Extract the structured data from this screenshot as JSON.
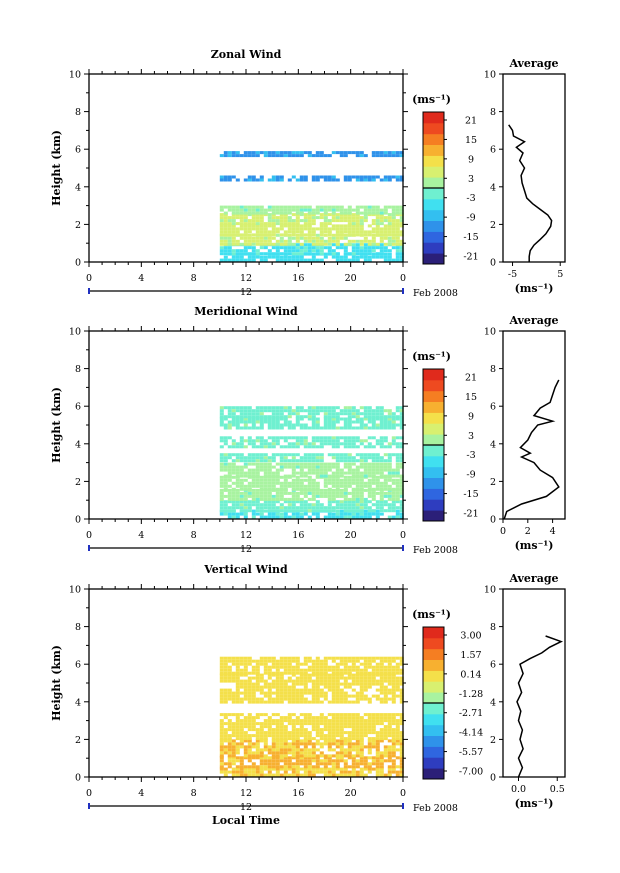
{
  "figure": {
    "xlabel": "Local Time",
    "date_label": "Feb 2008",
    "day_label": "12",
    "profile_title": "Average"
  },
  "colors": {
    "scale": [
      "#2b1f78",
      "#2e3dbf",
      "#2f66e0",
      "#2f92ea",
      "#33bff0",
      "#40e0f0",
      "#6ff0d0",
      "#a8f3a0",
      "#d8f070",
      "#f4e04a",
      "#f7b030",
      "#f57e22",
      "#ee4a20",
      "#e02a1c"
    ],
    "zero_line": "#000000"
  },
  "chart_data": [
    {
      "type": "heatmap",
      "title": "Zonal Wind",
      "ylabel": "Height (km)",
      "xlabel": "",
      "xlim": [
        0,
        24
      ],
      "ylim": [
        0,
        10
      ],
      "xticks": [
        "0",
        "4",
        "8",
        "12",
        "16",
        "20",
        "0"
      ],
      "yticks": [
        "0",
        "2",
        "4",
        "6",
        "8",
        "10"
      ],
      "colorbar": {
        "unit": "(ms⁻¹)",
        "ticks": [
          "21",
          "15",
          "9",
          "3",
          "-3",
          "-9",
          "-15",
          "-21"
        ],
        "range": [
          -24,
          24
        ]
      },
      "data_start_hour": 10,
      "layers": [
        {
          "y": [
            0.1,
            0.5
          ],
          "value": -5
        },
        {
          "y": [
            0.5,
            1.0
          ],
          "value": -4
        },
        {
          "y": [
            1.0,
            1.5
          ],
          "value": 4
        },
        {
          "y": [
            1.5,
            2.0
          ],
          "value": 5
        },
        {
          "y": [
            2.0,
            2.6
          ],
          "value": 4
        },
        {
          "y": [
            2.6,
            3.0
          ],
          "value": 1
        },
        {
          "y": [
            4.3,
            4.6
          ],
          "value": -11
        },
        {
          "y": [
            5.6,
            5.9
          ],
          "value": -11
        }
      ],
      "profile": {
        "xticks": [
          "-5",
          "5"
        ],
        "xlim": [
          -7,
          6
        ],
        "xlabel": "(ms⁻¹)",
        "points": [
          [
            -1.5,
            0.0
          ],
          [
            -1.5,
            0.3
          ],
          [
            -1.3,
            0.6
          ],
          [
            -0.5,
            0.9
          ],
          [
            0.8,
            1.2
          ],
          [
            2.0,
            1.5
          ],
          [
            3.0,
            1.9
          ],
          [
            3.2,
            2.2
          ],
          [
            2.4,
            2.5
          ],
          [
            0.8,
            2.8
          ],
          [
            -0.8,
            3.1
          ],
          [
            -2.0,
            3.4
          ],
          [
            -2.5,
            3.8
          ],
          [
            -3.0,
            4.2
          ],
          [
            -3.2,
            4.6
          ],
          [
            -2.5,
            5.0
          ],
          [
            -3.5,
            5.4
          ],
          [
            -2.8,
            5.8
          ],
          [
            -4.2,
            6.1
          ],
          [
            -2.5,
            6.4
          ],
          [
            -4.8,
            6.7
          ],
          [
            -5.0,
            7.0
          ],
          [
            -5.8,
            7.3
          ]
        ]
      }
    },
    {
      "type": "heatmap",
      "title": "Meridional Wind",
      "ylabel": "Height (km)",
      "xlabel": "",
      "xlim": [
        0,
        24
      ],
      "ylim": [
        0,
        10
      ],
      "xticks": [
        "0",
        "4",
        "8",
        "12",
        "16",
        "20",
        "0"
      ],
      "yticks": [
        "0",
        "2",
        "4",
        "6",
        "8",
        "10"
      ],
      "colorbar": {
        "unit": "(ms⁻¹)",
        "ticks": [
          "21",
          "15",
          "9",
          "3",
          "-3",
          "-9",
          "-15",
          "-21"
        ],
        "range": [
          -24,
          24
        ]
      },
      "data_start_hour": 10,
      "layers": [
        {
          "y": [
            0.1,
            0.5
          ],
          "value": -4
        },
        {
          "y": [
            0.5,
            1.0
          ],
          "value": -1
        },
        {
          "y": [
            1.0,
            1.6
          ],
          "value": 1
        },
        {
          "y": [
            1.6,
            2.3
          ],
          "value": 2
        },
        {
          "y": [
            2.3,
            3.0
          ],
          "value": 1
        },
        {
          "y": [
            3.1,
            3.5
          ],
          "value": -1
        },
        {
          "y": [
            3.8,
            4.4
          ],
          "value": -1
        },
        {
          "y": [
            4.8,
            5.4
          ],
          "value": -1
        },
        {
          "y": [
            5.5,
            6.0
          ],
          "value": -1
        }
      ],
      "profile": {
        "xticks": [
          "0",
          "2",
          "4"
        ],
        "xlim": [
          0,
          5
        ],
        "xlabel": "(ms⁻¹)",
        "points": [
          [
            0.1,
            0.0
          ],
          [
            0.3,
            0.4
          ],
          [
            1.5,
            0.8
          ],
          [
            3.5,
            1.2
          ],
          [
            4.5,
            1.7
          ],
          [
            4.0,
            2.2
          ],
          [
            3.0,
            2.6
          ],
          [
            2.5,
            3.0
          ],
          [
            1.5,
            3.3
          ],
          [
            2.2,
            3.5
          ],
          [
            1.4,
            3.8
          ],
          [
            2.0,
            4.2
          ],
          [
            2.3,
            4.6
          ],
          [
            2.8,
            5.0
          ],
          [
            4.0,
            5.2
          ],
          [
            2.5,
            5.5
          ],
          [
            3.0,
            5.9
          ],
          [
            3.8,
            6.2
          ],
          [
            4.0,
            6.6
          ],
          [
            4.2,
            7.0
          ],
          [
            4.5,
            7.4
          ]
        ]
      }
    },
    {
      "type": "heatmap",
      "title": "Vertical Wind",
      "ylabel": "Height (km)",
      "xlabel": "Local Time",
      "xlim": [
        0,
        24
      ],
      "ylim": [
        0,
        10
      ],
      "xticks": [
        "0",
        "4",
        "8",
        "12",
        "16",
        "20",
        "0"
      ],
      "yticks": [
        "0",
        "2",
        "4",
        "6",
        "8",
        "10"
      ],
      "colorbar": {
        "unit": "(ms⁻¹)",
        "ticks": [
          "3.00",
          "1.57",
          "0.14",
          "-1.28",
          "-2.71",
          "-4.14",
          "-5.57",
          "-7.00"
        ],
        "range": [
          -7.7,
          3.7
        ]
      },
      "data_start_hour": 10,
      "layers": [
        {
          "y": [
            0.1,
            0.5
          ],
          "value": 0.3
        },
        {
          "y": [
            0.5,
            1.1
          ],
          "value": 0.6
        },
        {
          "y": [
            1.1,
            2.0
          ],
          "value": 0.4
        },
        {
          "y": [
            2.0,
            3.4
          ],
          "value": 0.1
        },
        {
          "y": [
            4.0,
            5.5
          ],
          "value": 0.1
        },
        {
          "y": [
            5.6,
            6.4
          ],
          "value": 0.1
        }
      ],
      "profile": {
        "xticks": [
          "0.0",
          "0.5"
        ],
        "xlim": [
          -0.2,
          0.6
        ],
        "xlabel": "(ms⁻¹)",
        "points": [
          [
            0.0,
            0.0
          ],
          [
            0.05,
            0.5
          ],
          [
            0.0,
            1.0
          ],
          [
            0.06,
            1.5
          ],
          [
            0.02,
            2.0
          ],
          [
            0.05,
            2.5
          ],
          [
            0.0,
            3.0
          ],
          [
            0.03,
            3.5
          ],
          [
            -0.02,
            4.0
          ],
          [
            0.04,
            4.5
          ],
          [
            0.0,
            5.0
          ],
          [
            0.06,
            5.5
          ],
          [
            0.02,
            6.0
          ],
          [
            0.15,
            6.3
          ],
          [
            0.3,
            6.6
          ],
          [
            0.4,
            6.9
          ],
          [
            0.55,
            7.2
          ],
          [
            0.35,
            7.5
          ]
        ]
      }
    }
  ]
}
